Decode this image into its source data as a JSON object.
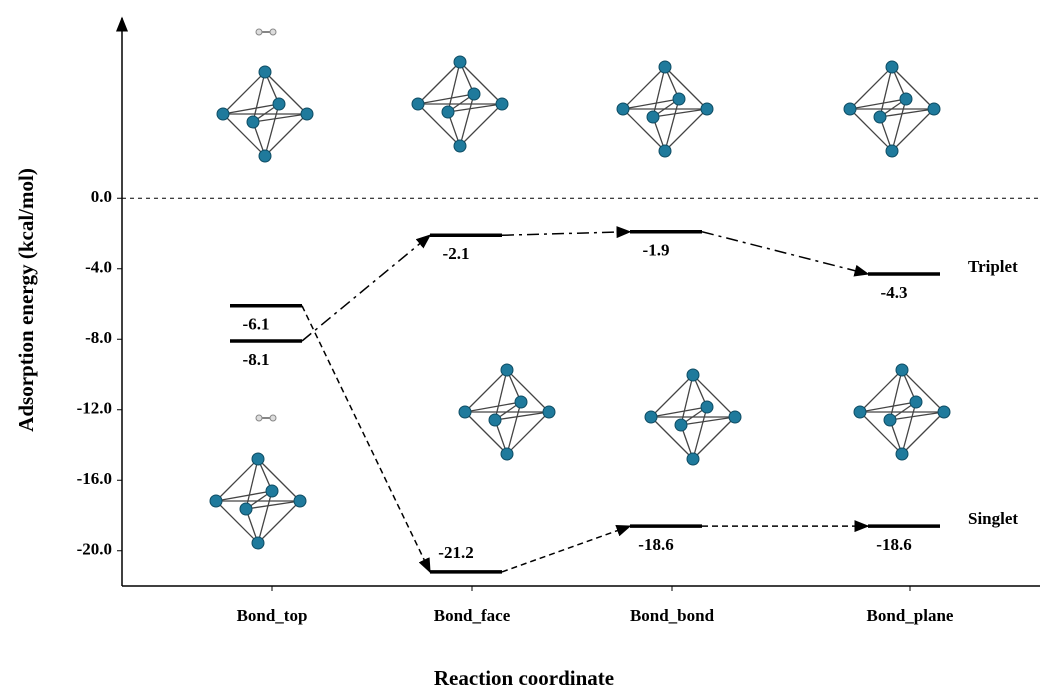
{
  "chart_data": {
    "type": "energy-level",
    "y_label": "Adsorption  energy  (kcal/mol)",
    "x_label": "Reaction coordinate",
    "categories": [
      "Bond_top",
      "Bond_face",
      "Bond_bond",
      "Bond_plane"
    ],
    "series": [
      {
        "name": "Triplet",
        "color": "#000000",
        "line_style": "dashdot",
        "values": [
          -8.1,
          -2.1,
          -1.9,
          -4.3
        ]
      },
      {
        "name": "Singlet",
        "color": "#000000",
        "line_style": "dashed",
        "values": [
          -6.1,
          -21.2,
          -18.6,
          -18.6
        ]
      }
    ],
    "ylim": [
      -22,
      10
    ],
    "yticks": [
      {
        "value": 0,
        "label": "0.0"
      },
      {
        "value": -4,
        "label": "-4.0"
      },
      {
        "value": -8,
        "label": "-8.0"
      },
      {
        "value": -12,
        "label": "-12.0"
      },
      {
        "value": -16,
        "label": "-16.0"
      },
      {
        "value": -20,
        "label": "-20.0"
      }
    ],
    "reference_line": 0
  }
}
